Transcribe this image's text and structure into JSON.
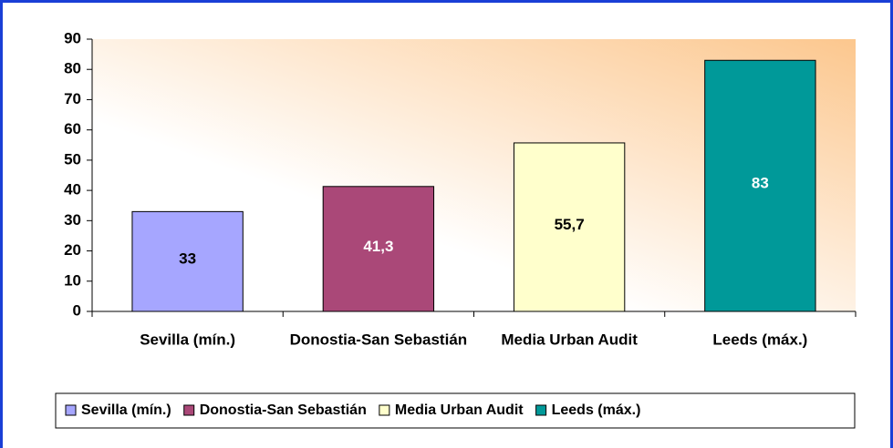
{
  "chart_data": {
    "type": "bar",
    "categories": [
      "Sevilla (mín.)",
      "Donostia-San Sebastián",
      "Media Urban Audit",
      "Leeds (máx.)"
    ],
    "values": [
      33,
      41.3,
      55.7,
      83
    ],
    "value_labels": [
      "33",
      "41,3",
      "55,7",
      "83"
    ],
    "colors": [
      "#a6a6ff",
      "#aa4878",
      "#ffffcc",
      "#009999"
    ],
    "ylim": [
      0,
      90
    ],
    "yticks": [
      0,
      10,
      20,
      30,
      40,
      50,
      60,
      70,
      80,
      90
    ],
    "grid": false,
    "legend": "bottom"
  }
}
